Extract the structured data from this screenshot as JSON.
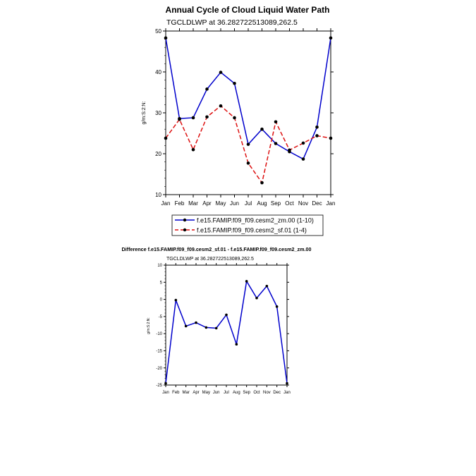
{
  "chart_data": [
    {
      "type": "line",
      "title": "Annual Cycle of Cloud Liquid Water Path",
      "subtitle": "TGCLDLWP at 36.282722513089,262.5",
      "xlabel": "",
      "ylabel": "g/m:S:2:N:",
      "categories": [
        "Jan",
        "Feb",
        "Mar",
        "Apr",
        "May",
        "Jun",
        "Jul",
        "Aug",
        "Sep",
        "Oct",
        "Nov",
        "Dec",
        "Jan"
      ],
      "ylim": [
        10,
        50
      ],
      "yticks": [
        10,
        20,
        30,
        40,
        50
      ],
      "legend_position": "bottom",
      "series": [
        {
          "name": "f.e15.FAMIP.f09_f09.cesm2_zm.00 (1-10)",
          "color": "#0000cc",
          "dash": "solid",
          "values": [
            48.3,
            28.6,
            28.8,
            35.8,
            39.9,
            37.2,
            22.3,
            26.0,
            22.5,
            20.5,
            18.7,
            26.5,
            48.3
          ]
        },
        {
          "name": "f.e15.FAMIP.f09_f09.cesm2_sf.01 (1-4)",
          "color": "#dd1111",
          "dash": "dashed",
          "values": [
            23.8,
            28.4,
            21.0,
            29.0,
            31.7,
            28.8,
            17.7,
            12.9,
            27.8,
            20.9,
            22.6,
            24.4,
            23.8
          ]
        }
      ]
    },
    {
      "type": "line",
      "title": "Difference f.e15.FAMIP.f09_f09.cesm2_sf.01 - f.e15.FAMIP.f09_f09.cesm2_zm.00",
      "subtitle": "TGCLDLWP at 36.282722513089,262.5",
      "xlabel": "",
      "ylabel": "g/m:S:2:N:",
      "categories": [
        "Jan",
        "Feb",
        "Mar",
        "Apr",
        "May",
        "Jun",
        "Jul",
        "Aug",
        "Sep",
        "Oct",
        "Nov",
        "Dec",
        "Jan"
      ],
      "ylim": [
        -25,
        10
      ],
      "yticks": [
        -25,
        -20,
        -15,
        -10,
        -5,
        0,
        5,
        10
      ],
      "series": [
        {
          "name": "difference",
          "color": "#0000cc",
          "dash": "solid",
          "values": [
            -24.5,
            -0.2,
            -7.8,
            -6.8,
            -8.2,
            -8.4,
            -4.5,
            -13.1,
            5.3,
            0.4,
            3.9,
            -2.1,
            -24.5
          ]
        }
      ]
    }
  ]
}
